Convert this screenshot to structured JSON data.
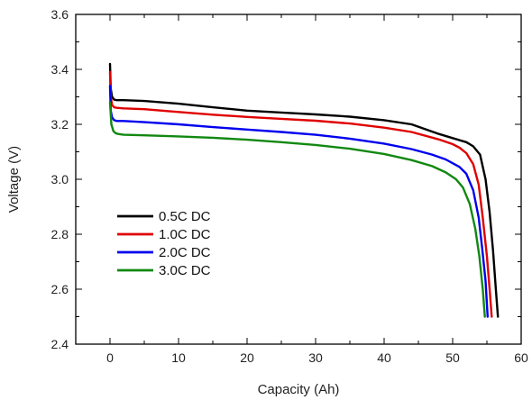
{
  "chart_data": {
    "type": "line",
    "title": "",
    "xlabel": "Capacity (Ah)",
    "ylabel": "Voltage (V)",
    "xlim": [
      -5,
      60
    ],
    "ylim": [
      2.4,
      3.6
    ],
    "xticks": [
      0,
      10,
      20,
      30,
      40,
      50,
      60
    ],
    "yticks": [
      2.4,
      2.6,
      2.8,
      3.0,
      3.2,
      3.4,
      3.6
    ],
    "xtick_labels": [
      "0",
      "10",
      "20",
      "30",
      "40",
      "50",
      "60"
    ],
    "ytick_labels": [
      "2.4",
      "2.6",
      "2.8",
      "3.0",
      "3.2",
      "3.4",
      "3.6"
    ],
    "grid": false,
    "legend_position": "center-left",
    "series": [
      {
        "name": "0.5C DC",
        "color": "#000000",
        "x": [
          0,
          0.1,
          0.3,
          0.6,
          1,
          2,
          5,
          10,
          15,
          20,
          25,
          30,
          35,
          40,
          44,
          48,
          50,
          52,
          53,
          54,
          54.8,
          55.4,
          55.9,
          56.3,
          56.6
        ],
        "y": [
          3.42,
          3.33,
          3.3,
          3.29,
          3.288,
          3.288,
          3.285,
          3.275,
          3.262,
          3.25,
          3.243,
          3.236,
          3.228,
          3.215,
          3.2,
          3.165,
          3.15,
          3.135,
          3.12,
          3.09,
          3.0,
          2.88,
          2.74,
          2.6,
          2.5
        ]
      },
      {
        "name": "1.0C DC",
        "color": "#e00000",
        "x": [
          0,
          0.1,
          0.3,
          0.6,
          1,
          2,
          5,
          10,
          15,
          20,
          25,
          30,
          35,
          40,
          44,
          48,
          50,
          51,
          52,
          53,
          53.8,
          54.4,
          55,
          55.4,
          55.7
        ],
        "y": [
          3.39,
          3.3,
          3.27,
          3.262,
          3.26,
          3.258,
          3.255,
          3.245,
          3.235,
          3.227,
          3.22,
          3.213,
          3.203,
          3.188,
          3.172,
          3.145,
          3.128,
          3.115,
          3.095,
          3.055,
          2.98,
          2.86,
          2.72,
          2.6,
          2.5
        ]
      },
      {
        "name": "2.0C DC",
        "color": "#0000ee",
        "x": [
          0,
          0.1,
          0.3,
          0.6,
          1,
          2,
          5,
          10,
          15,
          20,
          25,
          30,
          35,
          40,
          44,
          47,
          49,
          51,
          52,
          53,
          53.8,
          54.3,
          54.8,
          55.1
        ],
        "y": [
          3.34,
          3.25,
          3.225,
          3.215,
          3.212,
          3.212,
          3.208,
          3.2,
          3.19,
          3.181,
          3.172,
          3.162,
          3.148,
          3.13,
          3.11,
          3.09,
          3.072,
          3.045,
          3.02,
          2.96,
          2.86,
          2.75,
          2.63,
          2.5
        ]
      },
      {
        "name": "3.0C DC",
        "color": "#118811",
        "x": [
          0,
          0.2,
          0.5,
          0.8,
          1.2,
          2,
          5,
          10,
          15,
          20,
          25,
          30,
          35,
          40,
          44,
          47,
          49,
          50.5,
          51.5,
          52.5,
          53.3,
          53.9,
          54.4,
          54.7
        ],
        "y": [
          3.28,
          3.2,
          3.175,
          3.168,
          3.165,
          3.162,
          3.16,
          3.156,
          3.151,
          3.144,
          3.135,
          3.125,
          3.111,
          3.092,
          3.07,
          3.048,
          3.025,
          3.0,
          2.97,
          2.91,
          2.82,
          2.72,
          2.6,
          2.5
        ]
      }
    ]
  }
}
